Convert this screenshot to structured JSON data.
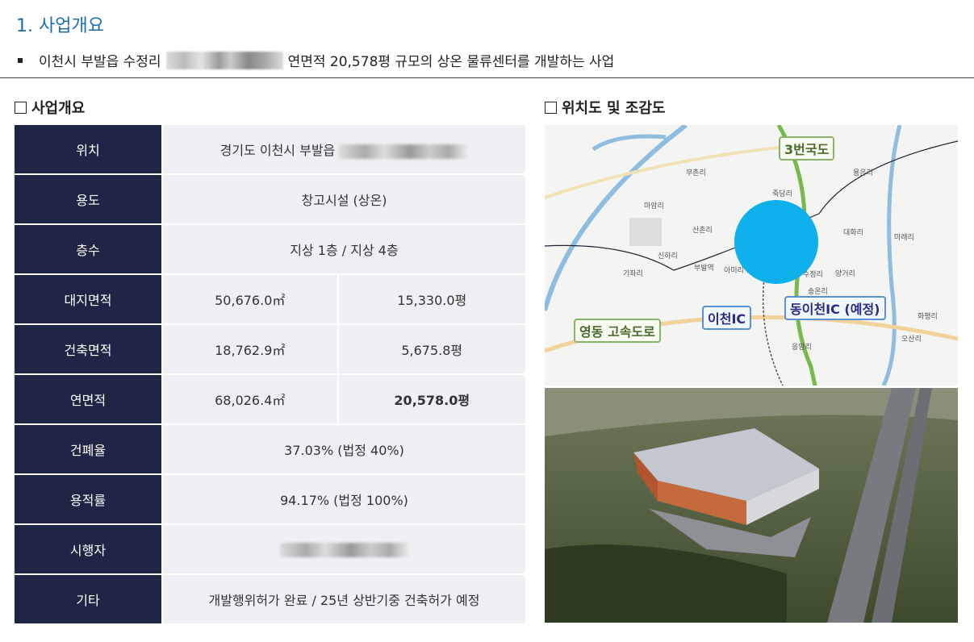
{
  "heading": "1. 사업개요",
  "summary": {
    "before": "이천시 부발읍 수정리",
    "after": "연면적 20,578평 규모의 상온 물류센터를 개발하는 사업"
  },
  "left_section_title": "사업개요",
  "right_section_title": "위치도 및 조감도",
  "table": {
    "rows": [
      {
        "label": "위치",
        "value": "경기도 이천시 부발읍"
      },
      {
        "label": "용도",
        "value": "창고시설 (상온)"
      },
      {
        "label": "층수",
        "value": "지상 1층 / 지상 4층"
      },
      {
        "label": "대지면적",
        "value": "50,676.0㎡",
        "value2": "15,330.0평"
      },
      {
        "label": "건축면적",
        "value": "18,762.9㎡",
        "value2": "5,675.8평"
      },
      {
        "label": "연면적",
        "value": "68,026.4㎡",
        "value2": "20,578.0평"
      },
      {
        "label": "건폐율",
        "value": "37.03% (법정 40%)"
      },
      {
        "label": "용적률",
        "value": "94.17% (법정 100%)"
      },
      {
        "label": "시행자",
        "value": ""
      },
      {
        "label": "기타",
        "value": "개발행위허가 완료 / 25년 상반기중 건축허가 예정"
      }
    ]
  },
  "map": {
    "callouts": {
      "route3": "3번국도",
      "yeongdong": "영동 고속도로",
      "icheon_ic": "이천IC",
      "east_icheon_ic": "동이천IC (예정)"
    },
    "places": [
      "무촌리",
      "죽당리",
      "용은리",
      "마암리",
      "신하리",
      "아미리",
      "수정리",
      "송온리",
      "기좌리",
      "대화리",
      "마래리",
      "양거리",
      "오산리",
      "화평리",
      "응암리",
      "산촌리",
      "부발역"
    ],
    "site_marker_color": "#0eb0ec"
  },
  "colors": {
    "heading": "#1d6fb0",
    "label_bg": "#1f2544",
    "cell_bg": "#eef0f4"
  }
}
